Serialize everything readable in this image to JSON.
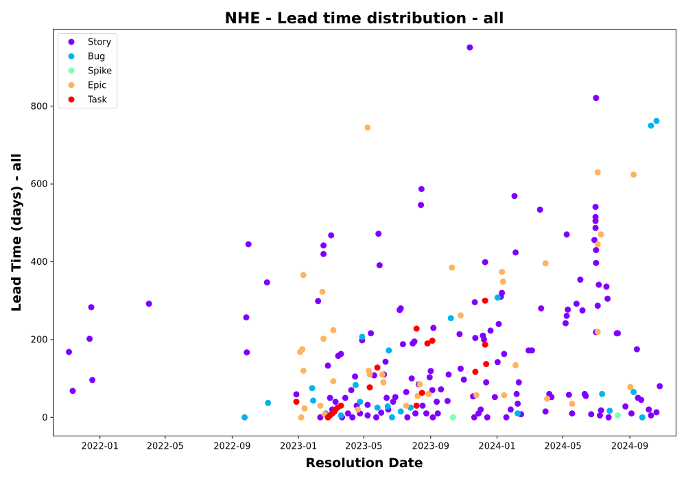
{
  "chart_data": {
    "type": "scatter",
    "title": "NHE - Lead time distribution - all",
    "xlabel": "Resolution Date",
    "ylabel": "Lead Time (days) - all",
    "x_ticks": [
      "2022-01",
      "2022-05",
      "2022-09",
      "2023-01",
      "2023-05",
      "2023-09",
      "2024-01",
      "2024-05",
      "2024-09"
    ],
    "y_ticks": [
      0,
      200,
      400,
      600,
      800
    ],
    "xlim": [
      "2021-10-07",
      "2024-11-25"
    ],
    "ylim": [
      -48,
      998
    ],
    "legend_position": "top-left",
    "grid": false,
    "series": [
      {
        "name": "Story",
        "color": "#8000ff",
        "points": [
          [
            "2021-11-05",
            168
          ],
          [
            "2021-11-12",
            68
          ],
          [
            "2021-12-13",
            202
          ],
          [
            "2021-12-16",
            283
          ],
          [
            "2021-12-18",
            96
          ],
          [
            "2022-04-01",
            292
          ],
          [
            "2022-09-27",
            257
          ],
          [
            "2022-09-28",
            167
          ],
          [
            "2022-10-01",
            445
          ],
          [
            "2022-11-04",
            347
          ],
          [
            "2022-12-28",
            59
          ],
          [
            "2023-02-06",
            299
          ],
          [
            "2023-02-10",
            0
          ],
          [
            "2023-02-16",
            442
          ],
          [
            "2023-02-16",
            420
          ],
          [
            "2023-02-24",
            133
          ],
          [
            "2023-02-28",
            50
          ],
          [
            "2023-03-02",
            468
          ],
          [
            "2023-03-04",
            20
          ],
          [
            "2023-03-10",
            40
          ],
          [
            "2023-03-15",
            158
          ],
          [
            "2023-03-20",
            163
          ],
          [
            "2023-03-22",
            0
          ],
          [
            "2023-03-28",
            50
          ],
          [
            "2023-04-02",
            10
          ],
          [
            "2023-04-08",
            70
          ],
          [
            "2023-04-10",
            0
          ],
          [
            "2023-04-15",
            105
          ],
          [
            "2023-04-18",
            30
          ],
          [
            "2023-04-24",
            10
          ],
          [
            "2023-04-28",
            198
          ],
          [
            "2023-05-08",
            32
          ],
          [
            "2023-05-08",
            5
          ],
          [
            "2023-05-14",
            216
          ],
          [
            "2023-05-20",
            108
          ],
          [
            "2023-05-24",
            0
          ],
          [
            "2023-05-28",
            472
          ],
          [
            "2023-05-30",
            391
          ],
          [
            "2023-06-02",
            12
          ],
          [
            "2023-06-07",
            110
          ],
          [
            "2023-06-10",
            143
          ],
          [
            "2023-06-12",
            50
          ],
          [
            "2023-06-15",
            20
          ],
          [
            "2023-06-24",
            40
          ],
          [
            "2023-06-28",
            52
          ],
          [
            "2023-07-06",
            276
          ],
          [
            "2023-07-08",
            280
          ],
          [
            "2023-07-12",
            188
          ],
          [
            "2023-07-18",
            65
          ],
          [
            "2023-07-20",
            0
          ],
          [
            "2023-07-28",
            100
          ],
          [
            "2023-07-30",
            190
          ],
          [
            "2023-08-02",
            195
          ],
          [
            "2023-08-04",
            10
          ],
          [
            "2023-08-10",
            85
          ],
          [
            "2023-08-14",
            546
          ],
          [
            "2023-08-15",
            587
          ],
          [
            "2023-08-17",
            30
          ],
          [
            "2023-08-24",
            10
          ],
          [
            "2023-08-30",
            103
          ],
          [
            "2023-09-01",
            119
          ],
          [
            "2023-09-04",
            70
          ],
          [
            "2023-09-05",
            0
          ],
          [
            "2023-09-06",
            230
          ],
          [
            "2023-09-12",
            40
          ],
          [
            "2023-09-14",
            10
          ],
          [
            "2023-09-20",
            72
          ],
          [
            "2023-10-02",
            42
          ],
          [
            "2023-10-04",
            110
          ],
          [
            "2023-10-24",
            214
          ],
          [
            "2023-10-26",
            125
          ],
          [
            "2023-11-01",
            97
          ],
          [
            "2023-11-12",
            951
          ],
          [
            "2023-11-18",
            54
          ],
          [
            "2023-11-20",
            0
          ],
          [
            "2023-11-21",
            296
          ],
          [
            "2023-11-22",
            204
          ],
          [
            "2023-11-28",
            10
          ],
          [
            "2023-12-02",
            20
          ],
          [
            "2023-12-06",
            210
          ],
          [
            "2023-12-08",
            200
          ],
          [
            "2023-12-10",
            399
          ],
          [
            "2023-12-12",
            90
          ],
          [
            "2023-12-14",
            0
          ],
          [
            "2023-12-20",
            223
          ],
          [
            "2023-12-28",
            52
          ],
          [
            "2024-01-02",
            142
          ],
          [
            "2024-01-04",
            240
          ],
          [
            "2024-01-08",
            310
          ],
          [
            "2024-01-10",
            320
          ],
          [
            "2024-01-14",
            163
          ],
          [
            "2024-01-18",
            0
          ],
          [
            "2024-01-26",
            20
          ],
          [
            "2024-02-02",
            569
          ],
          [
            "2024-02-04",
            424
          ],
          [
            "2024-02-06",
            60
          ],
          [
            "2024-02-08",
            35
          ],
          [
            "2024-02-10",
            90
          ],
          [
            "2024-02-14",
            8
          ],
          [
            "2024-02-28",
            172
          ],
          [
            "2024-03-05",
            172
          ],
          [
            "2024-03-20",
            534
          ],
          [
            "2024-03-22",
            280
          ],
          [
            "2024-03-30",
            15
          ],
          [
            "2024-04-06",
            60
          ],
          [
            "2024-04-10",
            52
          ],
          [
            "2024-05-06",
            242
          ],
          [
            "2024-05-08",
            261
          ],
          [
            "2024-05-08",
            470
          ],
          [
            "2024-05-10",
            277
          ],
          [
            "2024-05-12",
            58
          ],
          [
            "2024-05-18",
            10
          ],
          [
            "2024-05-26",
            292
          ],
          [
            "2024-06-02",
            354
          ],
          [
            "2024-06-06",
            275
          ],
          [
            "2024-06-10",
            60
          ],
          [
            "2024-06-12",
            55
          ],
          [
            "2024-06-22",
            8
          ],
          [
            "2024-06-28",
            456
          ],
          [
            "2024-06-30",
            541
          ],
          [
            "2024-06-30",
            515
          ],
          [
            "2024-06-30",
            505
          ],
          [
            "2024-06-30",
            487
          ],
          [
            "2024-07-01",
            430
          ],
          [
            "2024-07-01",
            397
          ],
          [
            "2024-07-01",
            219
          ],
          [
            "2024-07-01",
            821
          ],
          [
            "2024-07-04",
            287
          ],
          [
            "2024-07-06",
            341
          ],
          [
            "2024-07-08",
            5
          ],
          [
            "2024-07-10",
            18
          ],
          [
            "2024-07-20",
            336
          ],
          [
            "2024-07-22",
            305
          ],
          [
            "2024-07-24",
            0
          ],
          [
            "2024-08-08",
            216
          ],
          [
            "2024-08-10",
            216
          ],
          [
            "2024-08-24",
            28
          ],
          [
            "2024-09-04",
            10
          ],
          [
            "2024-09-14",
            175
          ],
          [
            "2024-09-16",
            50
          ],
          [
            "2024-09-22",
            45
          ],
          [
            "2024-10-06",
            20
          ],
          [
            "2024-10-10",
            5
          ],
          [
            "2024-10-20",
            13
          ],
          [
            "2024-10-26",
            80
          ]
        ]
      },
      {
        "name": "Bug",
        "color": "#00b5eb",
        "points": [
          [
            "2022-09-24",
            0
          ],
          [
            "2022-11-06",
            37
          ],
          [
            "2023-01-26",
            75
          ],
          [
            "2023-01-28",
            43
          ],
          [
            "2023-02-20",
            10
          ],
          [
            "2023-03-20",
            5
          ],
          [
            "2023-04-16",
            83
          ],
          [
            "2023-04-24",
            40
          ],
          [
            "2023-04-28",
            207
          ],
          [
            "2023-05-26",
            25
          ],
          [
            "2023-06-14",
            28
          ],
          [
            "2023-06-16",
            172
          ],
          [
            "2023-06-22",
            0
          ],
          [
            "2023-07-08",
            15
          ],
          [
            "2023-07-26",
            25
          ],
          [
            "2023-10-08",
            255
          ],
          [
            "2024-01-02",
            308
          ],
          [
            "2024-02-08",
            10
          ],
          [
            "2024-07-12",
            60
          ],
          [
            "2024-07-26",
            17
          ],
          [
            "2024-09-08",
            65
          ],
          [
            "2024-09-24",
            0
          ],
          [
            "2024-10-10",
            750
          ],
          [
            "2024-10-20",
            762
          ]
        ]
      },
      {
        "name": "Spike",
        "color": "#80ffb4",
        "points": [
          [
            "2023-10-12",
            0
          ],
          [
            "2024-08-10",
            5
          ]
        ]
      },
      {
        "name": "Epic",
        "color": "#ffb360",
        "points": [
          [
            "2023-01-04",
            168
          ],
          [
            "2023-01-06",
            0
          ],
          [
            "2023-01-08",
            175
          ],
          [
            "2023-01-10",
            366
          ],
          [
            "2023-01-10",
            120
          ],
          [
            "2023-01-12",
            23
          ],
          [
            "2023-02-10",
            30
          ],
          [
            "2023-02-14",
            323
          ],
          [
            "2023-02-16",
            202
          ],
          [
            "2023-02-18",
            8
          ],
          [
            "2023-03-06",
            224
          ],
          [
            "2023-03-06",
            93
          ],
          [
            "2023-04-20",
            20
          ],
          [
            "2023-05-08",
            745
          ],
          [
            "2023-05-10",
            120
          ],
          [
            "2023-05-12",
            110
          ],
          [
            "2023-06-04",
            110
          ],
          [
            "2023-06-06",
            90
          ],
          [
            "2023-07-18",
            30
          ],
          [
            "2023-08-08",
            55
          ],
          [
            "2023-08-12",
            85
          ],
          [
            "2023-08-28",
            60
          ],
          [
            "2023-10-10",
            385
          ],
          [
            "2023-10-26",
            262
          ],
          [
            "2023-11-24",
            57
          ],
          [
            "2024-01-10",
            374
          ],
          [
            "2024-01-12",
            349
          ],
          [
            "2024-01-14",
            57
          ],
          [
            "2024-02-04",
            134
          ],
          [
            "2024-03-30",
            396
          ],
          [
            "2024-04-02",
            48
          ],
          [
            "2024-05-18",
            35
          ],
          [
            "2024-07-04",
            630
          ],
          [
            "2024-07-04",
            445
          ],
          [
            "2024-07-04",
            220
          ],
          [
            "2024-07-10",
            470
          ],
          [
            "2024-09-02",
            78
          ],
          [
            "2024-09-08",
            624
          ]
        ]
      },
      {
        "name": "Task",
        "color": "#ff0000",
        "points": [
          [
            "2022-12-28",
            40
          ],
          [
            "2023-02-24",
            0
          ],
          [
            "2023-02-28",
            5
          ],
          [
            "2023-03-04",
            10
          ],
          [
            "2023-03-08",
            15
          ],
          [
            "2023-03-10",
            20
          ],
          [
            "2023-03-14",
            25
          ],
          [
            "2023-03-20",
            30
          ],
          [
            "2023-05-12",
            77
          ],
          [
            "2023-05-26",
            128
          ],
          [
            "2023-08-06",
            228
          ],
          [
            "2023-08-06",
            30
          ],
          [
            "2023-08-16",
            63
          ],
          [
            "2023-08-26",
            190
          ],
          [
            "2023-09-04",
            197
          ],
          [
            "2023-11-22",
            117
          ],
          [
            "2023-12-10",
            300
          ],
          [
            "2023-12-10",
            187
          ],
          [
            "2023-12-12",
            137
          ]
        ]
      }
    ]
  }
}
